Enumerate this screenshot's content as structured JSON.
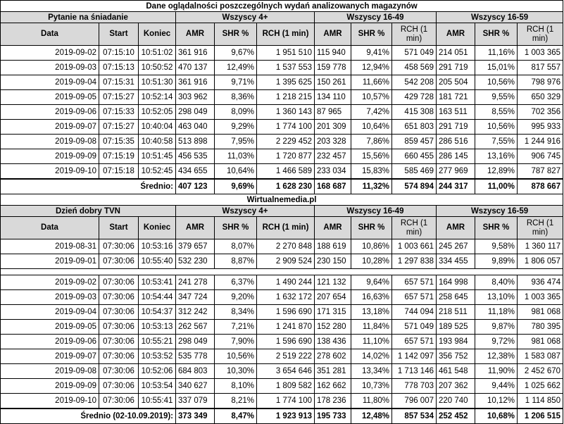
{
  "title": "Dane oglądalności poszczególnych wydań analizowanych magazynów",
  "footer_mid": "Wirtualnemedia.pl",
  "columns": {
    "date": "Data",
    "start": "Start",
    "end": "Koniec",
    "amr": "AMR",
    "shr": "SHR %",
    "rch": "RCH (1 min)",
    "rch_wrap": "RCH (1 min)"
  },
  "groups": [
    "Wszyscy 4+",
    "Wszyscy 16-49",
    "Wszyscy 16-59"
  ],
  "section1": {
    "name": "Pytanie na śniadanie",
    "rows": [
      [
        "2019-09-02",
        "07:15:10",
        "10:51:02",
        "361 916",
        "9,67%",
        "1 951 510",
        "115 940",
        "9,41%",
        "571 049",
        "214 051",
        "11,16%",
        "1 003 365"
      ],
      [
        "2019-09-03",
        "07:15:13",
        "10:50:52",
        "470 137",
        "12,49%",
        "1 537 553",
        "159 778",
        "12,94%",
        "458 569",
        "291 719",
        "15,01%",
        "817 557"
      ],
      [
        "2019-09-04",
        "07:15:31",
        "10:51:30",
        "361 916",
        "9,71%",
        "1 395 625",
        "150 261",
        "11,66%",
        "542 208",
        "205 504",
        "10,56%",
        "798 976"
      ],
      [
        "2019-09-05",
        "07:15:27",
        "10:52:14",
        "303 962",
        "8,36%",
        "1 218 215",
        "134 110",
        "10,57%",
        "429 728",
        "181 721",
        "9,55%",
        "650 329"
      ],
      [
        "2019-09-06",
        "07:15:33",
        "10:52:05",
        "298 049",
        "8,09%",
        "1 360 143",
        "87 965",
        "7,42%",
        "415 308",
        "163 511",
        "8,55%",
        "702 356"
      ],
      [
        "2019-09-07",
        "07:15:27",
        "10:40:04",
        "463 040",
        "9,29%",
        "1 774 100",
        "201 309",
        "10,64%",
        "651 803",
        "291 719",
        "10,56%",
        "995 933"
      ],
      [
        "2019-09-08",
        "07:15:35",
        "10:40:58",
        "513 898",
        "7,95%",
        "2 229 452",
        "203 328",
        "7,86%",
        "859 457",
        "286 516",
        "7,55%",
        "1 244 916"
      ],
      [
        "2019-09-09",
        "07:15:19",
        "10:51:45",
        "456 535",
        "11,03%",
        "1 720 877",
        "232 457",
        "15,56%",
        "660 455",
        "286 145",
        "13,16%",
        "906 745"
      ],
      [
        "2019-09-10",
        "07:15:18",
        "10:52:45",
        "434 655",
        "10,64%",
        "1 466 589",
        "233 034",
        "15,83%",
        "585 469",
        "277 969",
        "12,89%",
        "787 827"
      ]
    ],
    "summary_label": "Średnio:",
    "summary": [
      "407 123",
      "9,69%",
      "1 628 230",
      "168 687",
      "11,32%",
      "574 894",
      "244 317",
      "11,00%",
      "878 667"
    ]
  },
  "section2": {
    "name": "Dzień dobry TVN",
    "rows_pre": [
      [
        "2019-08-31",
        "07:30:06",
        "10:53:16",
        "379 657",
        "8,07%",
        "2 270 848",
        "188 619",
        "10,86%",
        "1 003 661",
        "245 267",
        "9,58%",
        "1 360 117"
      ],
      [
        "2019-09-01",
        "07:30:06",
        "10:55:40",
        "532 230",
        "8,87%",
        "2 909 524",
        "230 150",
        "10,28%",
        "1 297 838",
        "334 455",
        "9,89%",
        "1 806 057"
      ]
    ],
    "rows": [
      [
        "2019-09-02",
        "07:30:06",
        "10:53:41",
        "241 278",
        "6,37%",
        "1 490 244",
        "121 132",
        "9,64%",
        "657 571",
        "164 998",
        "8,40%",
        "936 474"
      ],
      [
        "2019-09-03",
        "07:30:06",
        "10:54:44",
        "347 724",
        "9,20%",
        "1 632 172",
        "207 654",
        "16,63%",
        "657 571",
        "258 645",
        "13,10%",
        "1 003 365"
      ],
      [
        "2019-09-04",
        "07:30:06",
        "10:54:37",
        "312 242",
        "8,34%",
        "1 596 690",
        "171 315",
        "13,18%",
        "744 094",
        "218 511",
        "11,18%",
        "981 068"
      ],
      [
        "2019-09-05",
        "07:30:06",
        "10:53:13",
        "262 567",
        "7,21%",
        "1 241 870",
        "152 280",
        "11,84%",
        "571 049",
        "189 525",
        "9,87%",
        "780 395"
      ],
      [
        "2019-09-06",
        "07:30:06",
        "10:55:21",
        "298 049",
        "7,90%",
        "1 596 690",
        "138 436",
        "11,10%",
        "657 571",
        "193 984",
        "9,72%",
        "981 068"
      ],
      [
        "2019-09-07",
        "07:30:06",
        "10:53:52",
        "535 778",
        "10,56%",
        "2 519 222",
        "278 602",
        "14,02%",
        "1 142 097",
        "356 752",
        "12,38%",
        "1 583 087"
      ],
      [
        "2019-09-08",
        "07:30:06",
        "10:52:06",
        "684 803",
        "10,30%",
        "3 654 646",
        "351 281",
        "13,34%",
        "1 713 146",
        "461 548",
        "11,90%",
        "2 452 670"
      ],
      [
        "2019-09-09",
        "07:30:06",
        "10:53:54",
        "340 627",
        "8,10%",
        "1 809 582",
        "162 662",
        "10,73%",
        "778 703",
        "207 362",
        "9,44%",
        "1 025 662"
      ],
      [
        "2019-09-10",
        "07:30:06",
        "10:55:41",
        "337 079",
        "8,21%",
        "1 774 100",
        "178 236",
        "11,80%",
        "796 007",
        "220 740",
        "10,12%",
        "1 114 850"
      ]
    ],
    "summary_label": "Średnio (02-10.09.2019):",
    "summary": [
      "373 349",
      "8,47%",
      "1 923 913",
      "195 733",
      "12,48%",
      "857 534",
      "252 452",
      "10,68%",
      "1 206 515"
    ]
  }
}
